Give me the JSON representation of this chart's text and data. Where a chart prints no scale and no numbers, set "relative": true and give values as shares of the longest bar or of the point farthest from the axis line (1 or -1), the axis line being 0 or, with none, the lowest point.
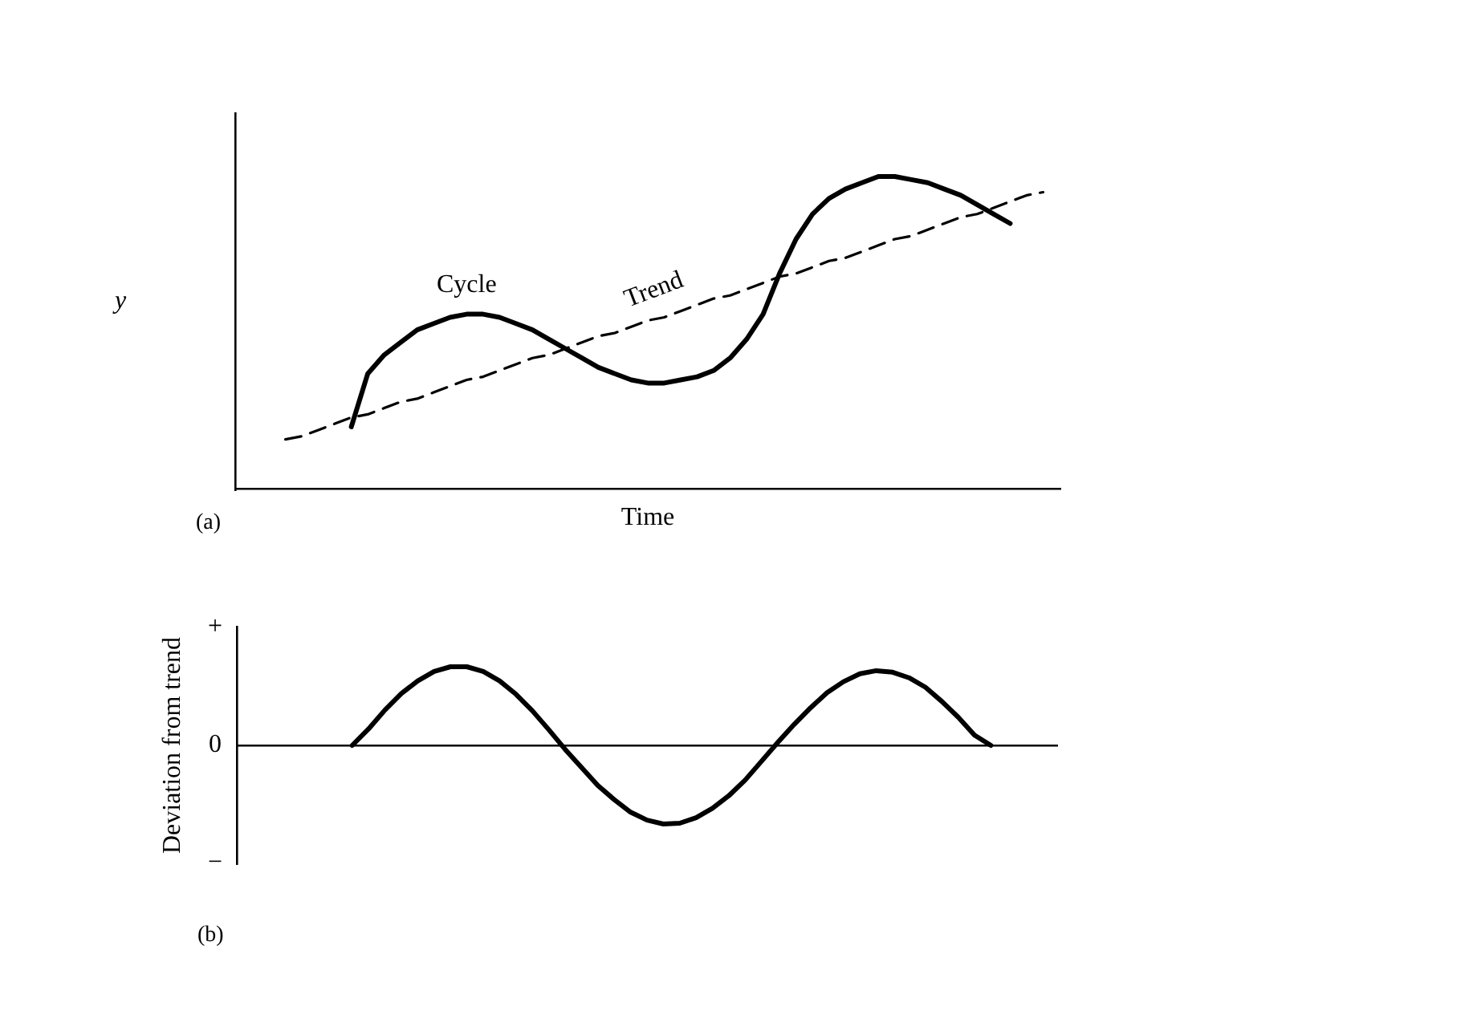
{
  "chart_data": [
    {
      "type": "line",
      "xlabel": "Time",
      "ylabel": "y",
      "relative": true,
      "legend": false,
      "grid": false,
      "marker": "none",
      "annotations": [
        "(a)"
      ],
      "categories": [
        null,
        null,
        null,
        null,
        null,
        null,
        null,
        null,
        null,
        null,
        null,
        null,
        null,
        null,
        null,
        null,
        null,
        null,
        null,
        null,
        null,
        null,
        null,
        null,
        null,
        null,
        null,
        null,
        null,
        null,
        null,
        null,
        null,
        null,
        null,
        null,
        null,
        null,
        null,
        null,
        null,
        null,
        null,
        null,
        null,
        null,
        null,
        null,
        null,
        null,
        null
      ],
      "series": [
        {
          "name": "Cycle",
          "color": "#000000",
          "line_style": "solid",
          "values": [
            null,
            null,
            null,
            null,
            null,
            null,
            null,
            0.2,
            0.37,
            0.43,
            0.47,
            0.51,
            0.53,
            0.55,
            0.56,
            0.56,
            0.55,
            0.53,
            0.51,
            0.48,
            0.45,
            0.42,
            0.39,
            0.37,
            0.35,
            0.34,
            0.34,
            0.35,
            0.36,
            0.38,
            0.42,
            0.48,
            0.56,
            0.69,
            0.8,
            0.88,
            0.93,
            0.96,
            0.98,
            1,
            1,
            0.99,
            0.98,
            0.96,
            0.94,
            0.91,
            0.88,
            0.85,
            null,
            null,
            null
          ]
        },
        {
          "name": "Trend",
          "color": "#000000",
          "line_style": "dashed",
          "values": [
            null,
            null,
            null,
            0.16,
            0.17,
            0.19,
            0.21,
            0.23,
            0.24,
            0.26,
            0.28,
            0.29,
            0.31,
            0.33,
            0.35,
            0.36,
            0.38,
            0.4,
            0.42,
            0.43,
            0.45,
            0.47,
            0.49,
            0.5,
            0.52,
            0.54,
            0.55,
            0.57,
            0.59,
            0.61,
            0.62,
            0.64,
            0.66,
            0.68,
            0.69,
            0.71,
            0.73,
            0.74,
            0.76,
            0.78,
            0.8,
            0.81,
            0.83,
            0.85,
            0.87,
            0.88,
            0.9,
            0.92,
            0.94,
            0.95,
            null
          ]
        }
      ]
    },
    {
      "type": "line",
      "ylabel": "Deviation from trend",
      "legend": false,
      "grid": false,
      "marker": "none",
      "relative": true,
      "annotations": [
        "(b)",
        "+",
        "0",
        "−"
      ],
      "categories": [
        null,
        null,
        null,
        null,
        null,
        null,
        null,
        null,
        null,
        null,
        null,
        null,
        null,
        null,
        null,
        null,
        null,
        null,
        null,
        null,
        null,
        null,
        null,
        null,
        null,
        null,
        null,
        null,
        null,
        null,
        null,
        null,
        null,
        null,
        null,
        null,
        null,
        null,
        null,
        null,
        null,
        null,
        null,
        null,
        null,
        null,
        null,
        null,
        null,
        null,
        null
      ],
      "series": [
        {
          "color": "#000000",
          "line_style": "solid",
          "values": [
            null,
            null,
            null,
            null,
            null,
            null,
            null,
            0,
            0.21,
            0.45,
            0.66,
            0.82,
            0.94,
            1,
            1,
            0.94,
            0.82,
            0.65,
            0.44,
            0.2,
            -0.05,
            -0.28,
            -0.51,
            -0.69,
            -0.85,
            -0.95,
            -1,
            -0.99,
            -0.92,
            -0.8,
            -0.64,
            -0.44,
            -0.2,
            0.04,
            0.27,
            0.48,
            0.67,
            0.81,
            0.91,
            0.95,
            0.93,
            0.86,
            0.74,
            0.56,
            0.36,
            0.13,
            0,
            null,
            null,
            null,
            null
          ]
        }
      ]
    }
  ]
}
